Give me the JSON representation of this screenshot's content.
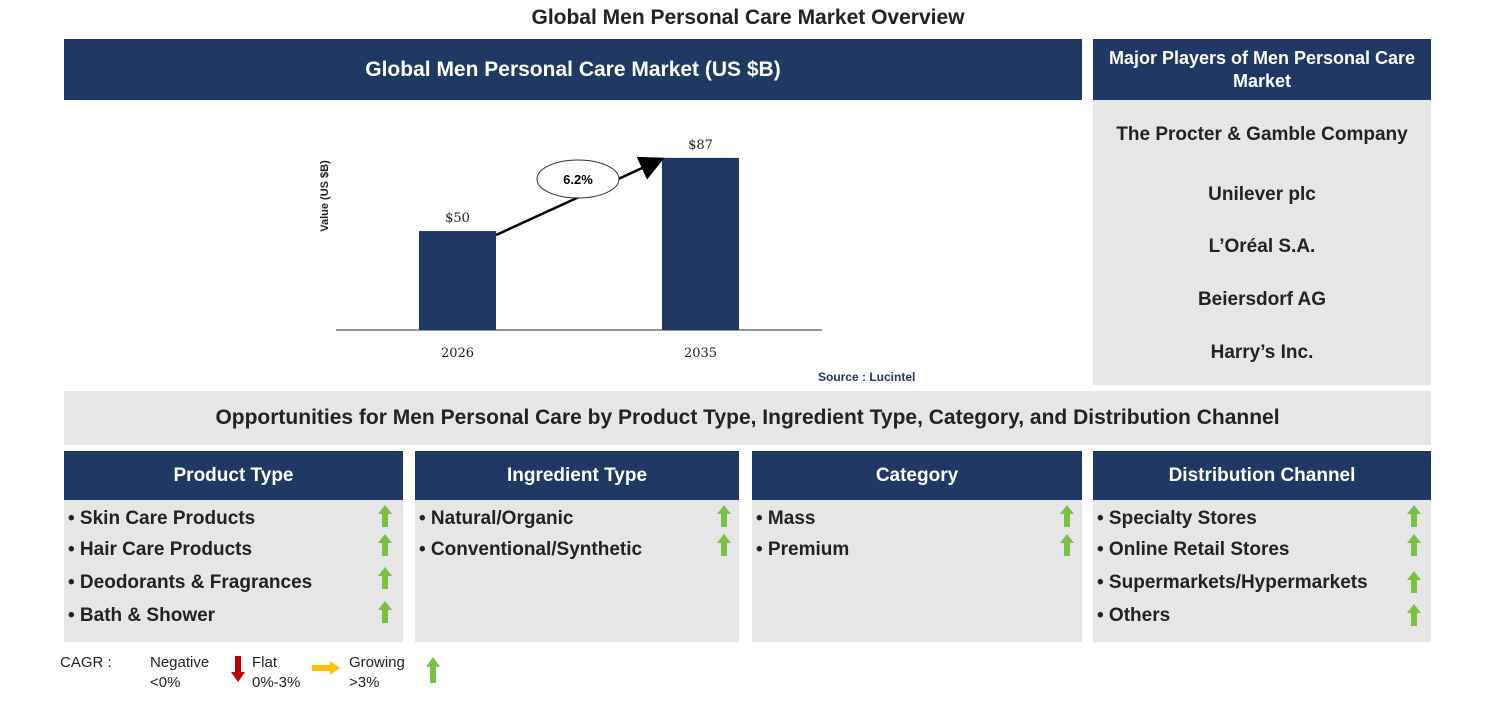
{
  "page_title": "Global Men Personal Care Market Overview",
  "chart_header": "Global Men Personal Care Market (US $B)",
  "players_header": "Major Players of Men Personal Care Market",
  "players": [
    "The Procter & Gamble Company",
    "Unilever plc",
    "L’Oréal S.A.",
    "Beiersdorf AG",
    "Harry’s Inc."
  ],
  "chart_data": {
    "type": "bar",
    "categories": [
      "2026",
      "2035"
    ],
    "values": [
      50,
      87
    ],
    "value_labels": [
      "$50",
      "$87"
    ],
    "ylabel": "Value (US $B)",
    "cagr_label": "6.2%",
    "ylim": [
      0,
      100
    ],
    "bar_color": "#1f3864"
  },
  "source": "Source : Lucintel",
  "opportunities_title": "Opportunities for Men Personal Care by Product Type, Ingredient Type, Category, and Distribution Channel",
  "segments": [
    {
      "title": "Product Type",
      "items": [
        "• Skin Care Products",
        "• Hair Care Products",
        "• Deodorants & Fragrances",
        "• Bath & Shower"
      ],
      "trend": [
        "growing",
        "growing",
        "growing",
        "growing"
      ]
    },
    {
      "title": "Ingredient Type",
      "items": [
        "• Natural/Organic",
        "• Conventional/Synthetic"
      ],
      "trend": [
        "growing",
        "growing"
      ]
    },
    {
      "title": "Category",
      "items": [
        "• Mass",
        "• Premium"
      ],
      "trend": [
        "growing",
        "growing"
      ]
    },
    {
      "title": "Distribution Channel",
      "items": [
        "• Specialty Stores",
        "• Online Retail Stores",
        "• Supermarkets/Hypermarkets",
        "• Others"
      ],
      "trend": [
        "growing",
        "growing",
        "growing",
        "growing"
      ]
    }
  ],
  "legend": {
    "cagr_label": "CAGR :",
    "negative": "Negative",
    "negative_range": "<0%",
    "flat": "Flat",
    "flat_range": "0%-3%",
    "growing": "Growing",
    "growing_range": ">3%"
  },
  "colors": {
    "navy": "#1f3864",
    "panel_gray": "#e7e6e6",
    "growing_arrow": "#7ac143",
    "negative_arrow": "#c00000",
    "flat_arrow": "#ffc000"
  }
}
